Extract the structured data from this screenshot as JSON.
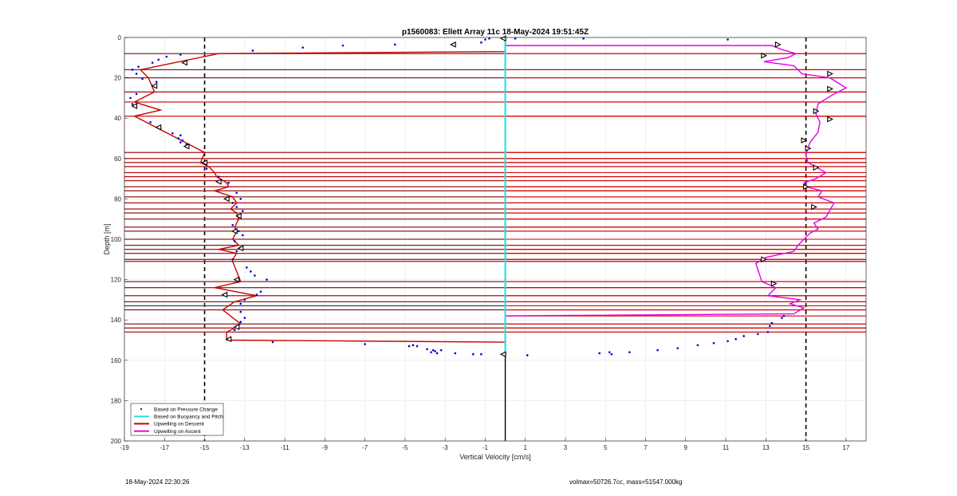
{
  "chart_data": {
    "type": "line",
    "title": "p1560083: Ellett Array 11c 18-May-2024 19:51:45Z",
    "xlabel": "Vertical Velocity [cm/s]",
    "ylabel": "Depth [m]",
    "xlim": [
      -19,
      18
    ],
    "ylim": [
      0,
      200
    ],
    "y_reversed": true,
    "grid": true,
    "xticks": [
      -19,
      -17,
      -15,
      -13,
      -11,
      -9,
      -7,
      -5,
      -3,
      -1,
      1,
      3,
      5,
      7,
      9,
      11,
      13,
      15,
      17
    ],
    "yticks": [
      0,
      20,
      40,
      60,
      80,
      100,
      120,
      140,
      160,
      180,
      200
    ],
    "reference_lines_x": [
      -15,
      15
    ],
    "zero_line_depth_range": [
      0,
      200
    ],
    "legend": {
      "placement": "bottom-left",
      "entries": [
        {
          "label": "Based on Pressure Change",
          "color": "#0000cc",
          "style": "dot"
        },
        {
          "label": "Based on Buoyancy and Pitch",
          "color": "#33dddd",
          "style": "line"
        },
        {
          "label": "Upwelling on Descent",
          "color": "#cc0000",
          "style": "line"
        },
        {
          "label": "Upwelling on Ascent",
          "color": "#e600e6",
          "style": "line"
        }
      ]
    },
    "series": [
      {
        "name": "Based on Pressure Change",
        "color": "#0000cc",
        "points": [
          [
            -1,
            1
          ],
          [
            -0.8,
            0.5
          ],
          [
            0.5,
            0.5
          ],
          [
            3.9,
            0.5
          ],
          [
            11.1,
            1
          ],
          [
            -1.2,
            2.5
          ],
          [
            -2.6,
            3.5
          ],
          [
            -5.5,
            3.5
          ],
          [
            -8.1,
            4
          ],
          [
            -10.1,
            5
          ],
          [
            -12.6,
            6.5
          ],
          [
            -16.2,
            8.5
          ],
          [
            -16.9,
            9.5
          ],
          [
            -17.3,
            11
          ],
          [
            -17.6,
            12.5
          ],
          [
            -18.3,
            14.5
          ],
          [
            -18.6,
            16
          ],
          [
            -18.4,
            18
          ],
          [
            -18.1,
            20.5
          ],
          [
            -17.4,
            22
          ],
          [
            -17.6,
            24
          ],
          [
            -18.4,
            28
          ],
          [
            -18.7,
            30
          ],
          [
            -18.6,
            33
          ],
          [
            -17.7,
            42
          ],
          [
            -17.2,
            45
          ],
          [
            -16.6,
            47.5
          ],
          [
            -16.2,
            48.5
          ],
          [
            -16.3,
            50
          ],
          [
            -16.1,
            51
          ],
          [
            -16.2,
            52
          ],
          [
            -15.9,
            53
          ],
          [
            -15,
            62
          ],
          [
            -14.9,
            65
          ],
          [
            -14.3,
            69
          ],
          [
            -13.8,
            72
          ],
          [
            -13.4,
            77
          ],
          [
            -13.2,
            80
          ],
          [
            -13.6,
            82
          ],
          [
            -13.4,
            84
          ],
          [
            -13.1,
            86
          ],
          [
            -13.3,
            89
          ],
          [
            -13.6,
            93
          ],
          [
            -13.3,
            96
          ],
          [
            -13.1,
            98
          ],
          [
            -13.5,
            101
          ],
          [
            -13.2,
            104
          ],
          [
            -13.4,
            106
          ],
          [
            -13.6,
            110
          ],
          [
            -12.9,
            114
          ],
          [
            -12.7,
            116
          ],
          [
            -12.5,
            118
          ],
          [
            -11.9,
            120
          ],
          [
            -12.2,
            126
          ],
          [
            -12.4,
            127.5
          ],
          [
            -13.0,
            130
          ],
          [
            -13.2,
            132
          ],
          [
            -13.2,
            136
          ],
          [
            -13.0,
            139
          ],
          [
            -13.2,
            141
          ],
          [
            -13.4,
            143
          ],
          [
            -13.5,
            145
          ],
          [
            -11.6,
            151
          ],
          [
            -7.0,
            152
          ],
          [
            -4.6,
            152.5
          ],
          [
            -4.8,
            153
          ],
          [
            -4.4,
            153
          ],
          [
            -3.9,
            154.5
          ],
          [
            -3.6,
            155
          ],
          [
            -3.2,
            155
          ],
          [
            -3.5,
            155.5
          ],
          [
            -3.7,
            156
          ],
          [
            -3.4,
            156.5
          ],
          [
            -2.5,
            156.5
          ],
          [
            -1.6,
            157
          ],
          [
            -1.2,
            157
          ],
          [
            0,
            157
          ],
          [
            1.1,
            157.5
          ],
          [
            4.7,
            156.5
          ],
          [
            5.2,
            156
          ],
          [
            5.3,
            157
          ],
          [
            6.2,
            156
          ],
          [
            7.6,
            155
          ],
          [
            8.6,
            154
          ],
          [
            9.6,
            152.5
          ],
          [
            10.4,
            151.5
          ],
          [
            11.1,
            150.5
          ],
          [
            11.5,
            149.5
          ],
          [
            11.9,
            148
          ],
          [
            12.6,
            147
          ],
          [
            13.1,
            146
          ],
          [
            13.2,
            143
          ],
          [
            13.3,
            141.5
          ],
          [
            13.8,
            139
          ],
          [
            13.9,
            138
          ]
        ]
      },
      {
        "name": "Based on Buoyancy and Pitch",
        "color": "#33dddd",
        "baseline_x": 0,
        "segments_depth": [
          8,
          16,
          20,
          27,
          57,
          60,
          62,
          64,
          67,
          69,
          71,
          74,
          76,
          79,
          82,
          85,
          87,
          90,
          94,
          96,
          100,
          103,
          105,
          107,
          110,
          111,
          121,
          124,
          128,
          131,
          133,
          135,
          142,
          144,
          146
        ]
      },
      {
        "name": "Upwelling on Descent",
        "color": "#cc0000",
        "profile": [
          [
            0,
            0
          ],
          [
            0,
            7
          ],
          [
            -14.3,
            8
          ],
          [
            -18.2,
            16
          ],
          [
            -17.8,
            20
          ],
          [
            -17.5,
            27
          ],
          [
            -18.5,
            32
          ],
          [
            -17.2,
            36
          ],
          [
            -18.5,
            39
          ],
          [
            -15.0,
            57
          ],
          [
            -15.2,
            62
          ],
          [
            -14.8,
            64
          ],
          [
            -14.5,
            67
          ],
          [
            -14.4,
            69
          ],
          [
            -13.9,
            72
          ],
          [
            -13.8,
            74
          ],
          [
            -14.5,
            76
          ],
          [
            -13.6,
            79
          ],
          [
            -13.4,
            82
          ],
          [
            -13.7,
            85
          ],
          [
            -13.4,
            87
          ],
          [
            -13.3,
            90
          ],
          [
            -13.5,
            94
          ],
          [
            -13.4,
            96
          ],
          [
            -13.6,
            100
          ],
          [
            -13.3,
            103
          ],
          [
            -14.3,
            105
          ],
          [
            -13.4,
            107
          ],
          [
            -13.6,
            110
          ],
          [
            -13.6,
            111
          ],
          [
            -13.2,
            121
          ],
          [
            -14.5,
            124
          ],
          [
            -12.4,
            128
          ],
          [
            -13.5,
            131
          ],
          [
            -13.8,
            133
          ],
          [
            -14.1,
            135
          ],
          [
            -13.2,
            142
          ],
          [
            -13.5,
            144
          ],
          [
            -13.9,
            146
          ],
          [
            -13.9,
            150
          ],
          [
            0,
            151
          ],
          [
            0,
            157
          ]
        ],
        "horizontal_lines_depth": [
          8,
          16,
          20,
          27,
          32,
          39,
          57,
          60,
          62,
          64,
          67,
          69,
          71,
          74,
          76,
          79,
          82,
          85,
          87,
          90,
          94,
          96,
          100,
          103,
          105,
          107,
          110,
          111,
          121,
          124,
          128,
          131,
          133,
          135,
          142,
          144,
          146
        ]
      },
      {
        "name": "Upwelling on Ascent",
        "color": "#e600e6",
        "profile": [
          [
            0,
            157
          ],
          [
            0,
            138
          ],
          [
            14.4,
            137
          ],
          [
            14.9,
            134
          ],
          [
            14.2,
            132
          ],
          [
            14.7,
            130
          ],
          [
            13.1,
            128
          ],
          [
            13.5,
            124
          ],
          [
            12.8,
            121
          ],
          [
            12.5,
            112
          ],
          [
            13.0,
            109
          ],
          [
            14.4,
            106
          ],
          [
            14.6,
            103
          ],
          [
            14.9,
            100
          ],
          [
            15.2,
            97
          ],
          [
            15.6,
            95
          ],
          [
            15.4,
            92
          ],
          [
            16.0,
            89
          ],
          [
            16.4,
            82
          ],
          [
            15.6,
            79
          ],
          [
            15.8,
            76
          ],
          [
            15.0,
            74
          ],
          [
            14.9,
            72
          ],
          [
            15.5,
            70
          ],
          [
            16.0,
            67
          ],
          [
            15.1,
            62
          ],
          [
            15.0,
            58
          ],
          [
            15.2,
            52
          ],
          [
            15.6,
            47
          ],
          [
            15.7,
            42
          ],
          [
            15.5,
            38
          ],
          [
            15.6,
            33
          ],
          [
            15.9,
            31
          ],
          [
            16.4,
            28
          ],
          [
            17.0,
            25
          ],
          [
            16.2,
            20
          ],
          [
            14.8,
            18
          ],
          [
            14.4,
            14
          ],
          [
            12.9,
            12
          ],
          [
            14.1,
            10
          ],
          [
            14.5,
            8
          ],
          [
            13.8,
            6
          ],
          [
            13.3,
            4
          ],
          [
            0,
            4
          ],
          [
            0,
            0
          ]
        ],
        "horizontal_lines_depth": [
          8,
          16,
          20,
          27,
          32,
          39,
          57,
          60,
          62,
          64,
          67,
          69,
          71,
          74,
          76,
          79,
          82,
          85,
          87,
          90,
          94,
          96,
          100,
          103,
          105,
          107,
          110,
          111,
          121,
          124,
          128,
          131,
          133,
          135,
          138,
          142,
          144,
          146
        ]
      },
      {
        "name": "markers-descent",
        "color": "#000000",
        "points": [
          [
            -0.1,
            0.5
          ],
          [
            -2.6,
            3.5
          ],
          [
            -16,
            12.5
          ],
          [
            -17.5,
            24
          ],
          [
            -18.5,
            34
          ],
          [
            -17.3,
            44.5
          ],
          [
            -15.9,
            54
          ],
          [
            -15,
            62
          ],
          [
            -14.3,
            71.5
          ],
          [
            -13.9,
            80
          ],
          [
            -13.3,
            88.5
          ],
          [
            -13.5,
            96
          ],
          [
            -13.2,
            104.5
          ],
          [
            -13.4,
            120
          ],
          [
            -14,
            127.5
          ],
          [
            -13.4,
            143.5
          ],
          [
            -13.8,
            149.5
          ],
          [
            -0.1,
            157
          ]
        ]
      },
      {
        "name": "markers-ascent",
        "color": "#000000",
        "points": [
          [
            13.6,
            3.5
          ],
          [
            12.9,
            9
          ],
          [
            16.2,
            18
          ],
          [
            16.2,
            25.5
          ],
          [
            15.5,
            36.5
          ],
          [
            16.2,
            40.5
          ],
          [
            14.9,
            51
          ],
          [
            15.1,
            55
          ],
          [
            15.5,
            64.5
          ],
          [
            15.0,
            74
          ],
          [
            15.4,
            84
          ],
          [
            12.9,
            110
          ],
          [
            13.4,
            122
          ]
        ]
      }
    ]
  },
  "footer": {
    "timestamp": "18-May-2024 22:30:26",
    "summary": "volmax=50726.7cc, mass=51547.000kg"
  }
}
